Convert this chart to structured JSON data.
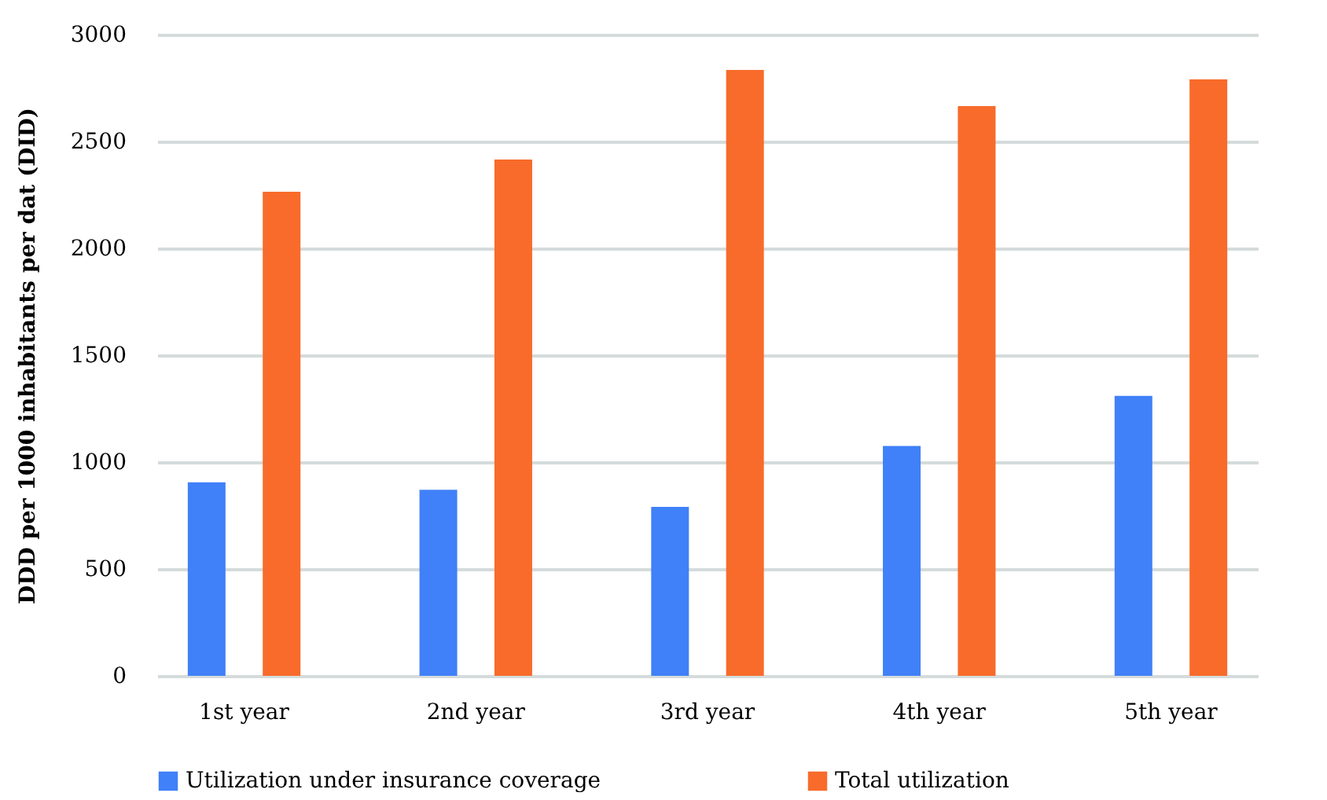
{
  "chart_data": {
    "type": "bar",
    "ylabel": "DDD per 1000 inhabitants per dat (DID)",
    "categories": [
      "1st year",
      "2nd year",
      "3rd year",
      "4th year",
      "5th year"
    ],
    "series": [
      {
        "name": "Utilization under insurance coverage",
        "color": "#4080f8",
        "values": [
          905,
          870,
          790,
          1075,
          1310
        ]
      },
      {
        "name": "Total utilization",
        "color": "#f86b2b",
        "values": [
          2265,
          2415,
          2835,
          2665,
          2790
        ]
      }
    ],
    "ylim": [
      0,
      3000
    ],
    "yticks": [
      0,
      500,
      1000,
      1500,
      2000,
      2500,
      3000
    ],
    "grid": "y",
    "legend": "bottom"
  }
}
